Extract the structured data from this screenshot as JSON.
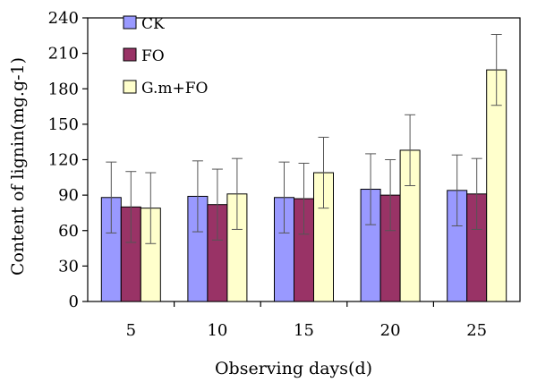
{
  "chart_data": {
    "type": "bar",
    "title": "",
    "xlabel": "Observing days(d)",
    "ylabel": "Content of lignin(mg.g-1)",
    "categories": [
      "5",
      "10",
      "15",
      "20",
      "25"
    ],
    "ylim": [
      0,
      240
    ],
    "yticks": [
      0,
      30,
      60,
      90,
      120,
      150,
      180,
      210,
      240
    ],
    "grid": false,
    "legend_position": "top-left",
    "series": [
      {
        "name": "CK",
        "color": "#9999ff",
        "values": [
          88,
          89,
          88,
          95,
          94
        ],
        "errors": [
          30,
          30,
          30,
          30,
          30
        ]
      },
      {
        "name": "FO",
        "color": "#993366",
        "values": [
          80,
          82,
          87,
          90,
          91
        ],
        "errors": [
          30,
          30,
          30,
          30,
          30
        ]
      },
      {
        "name": "G.m+FO",
        "color": "#ffffcc",
        "values": [
          79,
          91,
          109,
          128,
          196
        ],
        "errors": [
          30,
          30,
          30,
          30,
          30
        ]
      }
    ]
  }
}
